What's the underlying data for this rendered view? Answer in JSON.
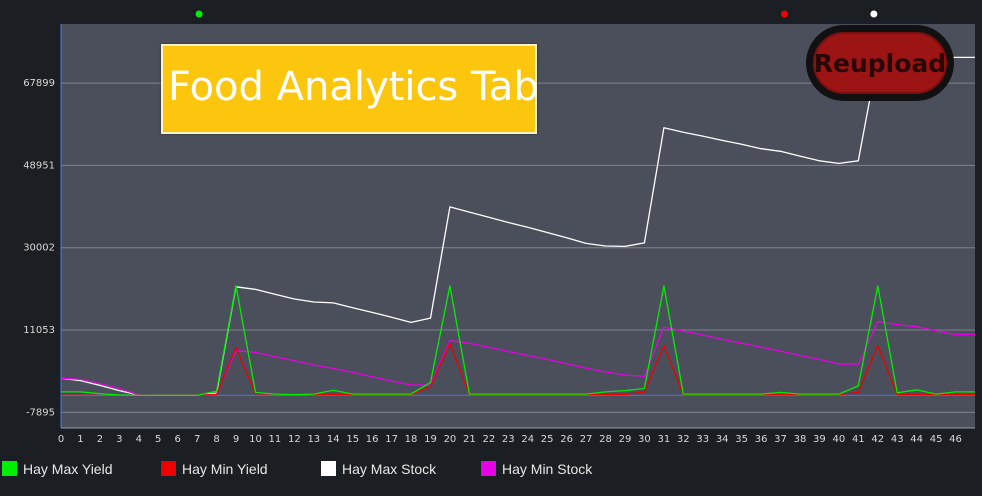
{
  "chart_data": {
    "type": "line",
    "title": "",
    "xlabel": "",
    "ylabel": "",
    "x": [
      0,
      1,
      2,
      3,
      4,
      5,
      6,
      7,
      8,
      9,
      10,
      11,
      12,
      13,
      14,
      15,
      16,
      17,
      18,
      19,
      20,
      21,
      22,
      23,
      24,
      25,
      26,
      27,
      28,
      29,
      30,
      31,
      32,
      33,
      34,
      35,
      36,
      37,
      38,
      39,
      40,
      41,
      42,
      43,
      44,
      45,
      46,
      47
    ],
    "x_tick_labels": [
      "0",
      "1",
      "2",
      "3",
      "4",
      "5",
      "6",
      "7",
      "8",
      "9",
      "10",
      "11",
      "12",
      "13",
      "14",
      "15",
      "16",
      "17",
      "18",
      "19",
      "20",
      "21",
      "22",
      "23",
      "24",
      "25",
      "26",
      "27",
      "28",
      "29",
      "30",
      "31",
      "32",
      "33",
      "34",
      "35",
      "36",
      "37",
      "38",
      "39",
      "40",
      "41",
      "42",
      "43",
      "44",
      "45",
      "46"
    ],
    "y_ticks": [
      -7895,
      11053,
      30002,
      48951,
      67899
    ],
    "y_tick_labels": [
      "-7895",
      "11053",
      "30002",
      "48951",
      "67899"
    ],
    "xlim": [
      0,
      47
    ],
    "ylim": [
      -11500,
      81500
    ],
    "grid": true,
    "legend_position": "bottom",
    "series": [
      {
        "name": "Hay Max Yield",
        "color": "#00ee00",
        "values": [
          -3200,
          -3200,
          -3600,
          -3900,
          -4000,
          -4000,
          -4000,
          -4000,
          -3000,
          21200,
          -3300,
          -3700,
          -3800,
          -3700,
          -2800,
          -3700,
          -3700,
          -3700,
          -3700,
          -1000,
          21200,
          -3700,
          -3700,
          -3700,
          -3700,
          -3700,
          -3700,
          -3700,
          -3200,
          -2900,
          -2400,
          21200,
          -3700,
          -3700,
          -3700,
          -3700,
          -3700,
          -3300,
          -3700,
          -3700,
          -3700,
          -1800,
          21200,
          -3400,
          -2700,
          -3700,
          -3200,
          -3200
        ]
      },
      {
        "name": "Hay Min Yield",
        "color": "#ee0000",
        "values": [
          -3600,
          -3600,
          -3600,
          -3900,
          -4000,
          -4000,
          -4000,
          -4000,
          -3800,
          7000,
          -3600,
          -3700,
          -3800,
          -3800,
          -3800,
          -3800,
          -3800,
          -3800,
          -3800,
          -2000,
          8000,
          -3800,
          -3800,
          -3800,
          -3800,
          -3800,
          -3800,
          -3800,
          -3800,
          -3800,
          -3200,
          7500,
          -3800,
          -3800,
          -3800,
          -3800,
          -3800,
          -3800,
          -3800,
          -3800,
          -3800,
          -3300,
          7500,
          -3800,
          -3800,
          -3800,
          -3800,
          -3800
        ]
      },
      {
        "name": "Hay Max Stock",
        "color": "#ffffff",
        "values": [
          -30,
          -600,
          -1700,
          -2900,
          -3900,
          -4000,
          -4000,
          -4000,
          -3500,
          21000,
          20400,
          19300,
          18200,
          17500,
          17300,
          16200,
          15100,
          14000,
          12800,
          13800,
          39400,
          38200,
          37000,
          35800,
          34700,
          33500,
          32300,
          31000,
          30400,
          30300,
          31100,
          57600,
          56600,
          55700,
          54700,
          53800,
          52800,
          52200,
          51100,
          50000,
          49400,
          50000,
          74000,
          73800,
          73800,
          73800,
          73800,
          73800
        ]
      },
      {
        "name": "Hay Min Stock",
        "color": "#e600e6",
        "values": [
          -30,
          -300,
          -1300,
          -2400,
          -3900,
          -4000,
          -4000,
          -4000,
          -3700,
          6300,
          5900,
          4900,
          4000,
          3000,
          2200,
          1300,
          300,
          -700,
          -1600,
          -1600,
          8600,
          8000,
          7100,
          6100,
          5200,
          4300,
          3300,
          2300,
          1400,
          700,
          400,
          11700,
          10800,
          9900,
          8900,
          8000,
          7100,
          6200,
          5200,
          4300,
          3200,
          3200,
          13000,
          12300,
          11800,
          10900,
          10000,
          10100
        ]
      },
      {
        "name": "",
        "color": "#3f6fd6",
        "values": [
          -4000,
          -4000,
          -4000,
          -4000,
          -4000,
          -4000,
          -4000,
          -4000,
          -4000,
          -4000,
          -4000,
          -4000,
          -4000,
          -4000,
          -4000,
          -4000,
          -4000,
          -4000,
          -4000,
          -4000,
          -4000,
          -4000,
          -4000,
          -4000,
          -4000,
          -4000,
          -4000,
          -4000,
          -4000,
          -4000,
          -4000,
          -4000,
          -4000,
          -4000,
          -4000,
          -4000,
          -4000,
          -4000,
          -4000,
          -4000,
          -4000,
          -4000,
          -4000,
          -4000,
          -4000,
          -4000,
          -4000,
          -4000
        ]
      }
    ],
    "top_markers": [
      {
        "color": "#00ee00",
        "x": 7.1
      },
      {
        "color": "#ee0000",
        "x": 37.2
      },
      {
        "color": "#ffffff",
        "x": 41.8
      }
    ]
  },
  "overlay": {
    "tab_banner_text": "Food Analytics Tab",
    "reupload_text": "Reupload"
  },
  "colors": {
    "plot_background": "#4b4f5b",
    "page_background": "#1b1e23",
    "banner": "#fdc60e",
    "badge": "#9c1414"
  }
}
